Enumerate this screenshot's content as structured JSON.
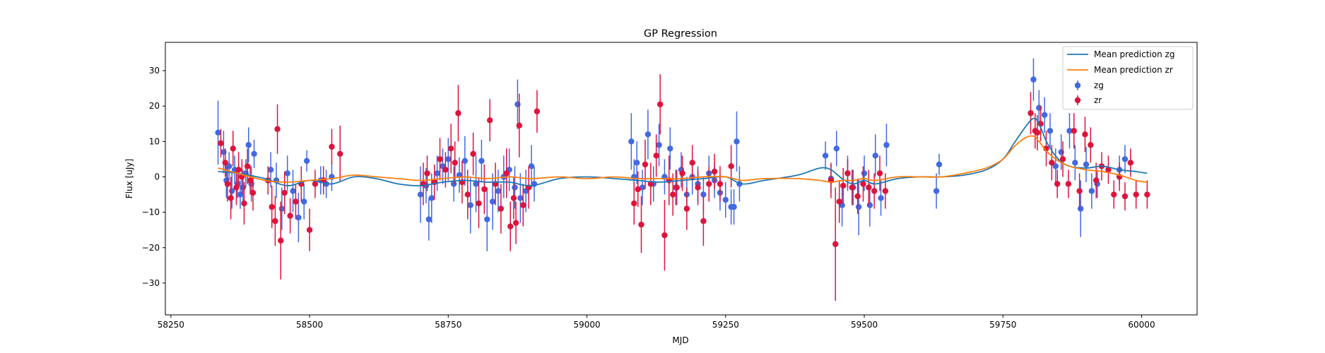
{
  "chart_data": {
    "type": "scatter",
    "title": "GP Regression",
    "xlabel": "MJD",
    "ylabel": "Flux [uJy]",
    "xlim": [
      58240,
      60100
    ],
    "ylim": [
      -39,
      38
    ],
    "x_ticks": [
      58250,
      58500,
      58750,
      59000,
      59250,
      59500,
      59750,
      60000
    ],
    "y_ticks": [
      -30,
      -20,
      -10,
      0,
      10,
      20,
      30
    ],
    "grid": false,
    "legend_position": "top-right",
    "legend": [
      "Mean prediction zg",
      "Mean prediction zr",
      "zg",
      "zr"
    ],
    "series": [
      {
        "name": "Mean prediction zg",
        "kind": "line",
        "color": "#1f77b4",
        "x": [
          58335,
          58370,
          58420,
          58460,
          58500,
          58540,
          58580,
          58620,
          58660,
          58700,
          58740,
          58780,
          58820,
          58860,
          58900,
          58950,
          59000,
          59050,
          59090,
          59130,
          59170,
          59210,
          59250,
          59280,
          59320,
          59380,
          59420,
          59440,
          59460,
          59480,
          59500,
          59520,
          59560,
          59600,
          59640,
          59680,
          59720,
          59750,
          59770,
          59790,
          59805,
          59815,
          59830,
          59850,
          59870,
          59900,
          59930,
          59960,
          59990,
          60010
        ],
        "y": [
          1.5,
          1.0,
          -0.5,
          -2.5,
          -1.0,
          -2.0,
          0.0,
          -0.5,
          -2.0,
          -2.5,
          -1.5,
          -1.0,
          -1.5,
          -1.5,
          -2.5,
          -0.5,
          0.0,
          -0.5,
          -1.0,
          -1.5,
          -1.0,
          -0.5,
          0.0,
          -2.0,
          -1.0,
          0.5,
          2.5,
          2.0,
          -0.5,
          -2.0,
          -1.0,
          -2.0,
          -0.5,
          0.0,
          0.0,
          0.5,
          2.0,
          5.0,
          9.5,
          14.0,
          16.5,
          15.0,
          9.5,
          5.0,
          3.0,
          2.5,
          3.0,
          2.0,
          1.5,
          1.0
        ]
      },
      {
        "name": "Mean prediction zr",
        "kind": "line",
        "color": "#ff7f0e",
        "x": [
          58335,
          58370,
          58420,
          58460,
          58500,
          58540,
          58580,
          58620,
          58660,
          58700,
          58740,
          58780,
          58820,
          58860,
          58900,
          58950,
          59000,
          59050,
          59090,
          59130,
          59170,
          59210,
          59250,
          59280,
          59320,
          59380,
          59420,
          59440,
          59460,
          59480,
          59500,
          59520,
          59560,
          59600,
          59640,
          59680,
          59720,
          59750,
          59770,
          59790,
          59805,
          59815,
          59830,
          59850,
          59870,
          59900,
          59930,
          59960,
          59990,
          60010
        ],
        "y": [
          2.5,
          1.0,
          -1.0,
          -1.5,
          -1.0,
          -0.5,
          0.5,
          0.0,
          -0.5,
          -1.0,
          -0.5,
          0.0,
          -0.5,
          0.0,
          -0.5,
          0.0,
          -0.5,
          0.0,
          -0.5,
          -0.5,
          -0.5,
          0.0,
          0.0,
          -1.0,
          -0.5,
          -0.5,
          -1.0,
          -1.5,
          -1.0,
          -1.0,
          -0.5,
          -1.0,
          0.0,
          0.0,
          0.0,
          1.0,
          2.5,
          5.0,
          8.5,
          11.0,
          11.5,
          10.0,
          7.0,
          4.5,
          3.0,
          2.0,
          1.5,
          0.5,
          -1.0,
          -1.5
        ]
      },
      {
        "name": "zg",
        "kind": "errorbar",
        "color": "#4169e1",
        "x": [
          58335,
          58345,
          58350,
          58355,
          58360,
          58365,
          58370,
          58375,
          58380,
          58385,
          58390,
          58395,
          58400,
          58430,
          58440,
          58450,
          58460,
          58470,
          58480,
          58490,
          58495,
          58520,
          58530,
          58540,
          58700,
          58710,
          58715,
          58720,
          58730,
          58740,
          58750,
          58760,
          58770,
          58780,
          58790,
          58800,
          58810,
          58820,
          58830,
          58840,
          58850,
          58860,
          58870,
          58875,
          58880,
          58890,
          58900,
          58905,
          59080,
          59085,
          59090,
          59100,
          59110,
          59120,
          59130,
          59140,
          59150,
          59160,
          59170,
          59180,
          59190,
          59200,
          59210,
          59220,
          59230,
          59240,
          59250,
          59260,
          59265,
          59270,
          59275,
          59430,
          59440,
          59450,
          59460,
          59470,
          59480,
          59490,
          59500,
          59510,
          59520,
          59530,
          59540,
          59630,
          59635,
          59805,
          59815,
          59825,
          59835,
          59845,
          59855,
          59870,
          59880,
          59890,
          59900,
          59910,
          59920,
          59960,
          59970
        ],
        "y": [
          12.5,
          7.0,
          -1.0,
          3.0,
          -4.0,
          2.0,
          -2.0,
          -5.0,
          -3.0,
          1.0,
          9.0,
          -2.0,
          6.5,
          2.0,
          -1.0,
          -9.0,
          1.0,
          -4.0,
          -11.5,
          -7.0,
          4.5,
          -1.0,
          -2.0,
          0.0,
          -5.0,
          -2.5,
          -12.0,
          -6.0,
          1.0,
          3.0,
          5.0,
          -2.0,
          0.5,
          4.5,
          -8.0,
          -2.0,
          4.5,
          -12.0,
          -7.0,
          -4.0,
          0.0,
          2.0,
          -3.0,
          20.5,
          -6.0,
          -4.0,
          3.0,
          -2.0,
          10.0,
          0.0,
          4.0,
          -3.0,
          12.0,
          -2.0,
          9.0,
          0.0,
          8.0,
          -3.0,
          2.0,
          -5.0,
          0.0,
          -2.0,
          -5.0,
          1.0,
          -1.0,
          -4.5,
          -6.5,
          -8.5,
          -8.5,
          10.0,
          -2.0,
          6.0,
          -0.5,
          8.0,
          -8.0,
          1.0,
          -3.0,
          -8.5,
          1.0,
          -8.0,
          6.0,
          -6.0,
          9.0,
          -4.0,
          3.5,
          27.5,
          19.5,
          17.5,
          13.0,
          3.0,
          7.0,
          13.0,
          4.0,
          -9.0,
          3.5,
          -4.0,
          -2.0,
          2.0,
          5.0
        ],
        "err": [
          9.0,
          6.0,
          5.0,
          4.0,
          5.0,
          4.0,
          4.0,
          4.0,
          5.0,
          4.0,
          5.0,
          5.0,
          4.0,
          5.0,
          5.0,
          6.0,
          5.0,
          6.0,
          7.0,
          5.0,
          3.0,
          4.0,
          4.0,
          4.0,
          8.0,
          5.0,
          6.0,
          7.0,
          5.0,
          5.0,
          6.0,
          5.0,
          5.0,
          7.0,
          8.0,
          8.0,
          6.0,
          9.0,
          8.0,
          6.0,
          6.0,
          6.0,
          6.0,
          7.0,
          7.0,
          6.0,
          6.0,
          5.0,
          8.0,
          5.0,
          6.0,
          5.0,
          7.0,
          5.0,
          6.0,
          5.0,
          6.0,
          5.0,
          5.0,
          5.0,
          5.0,
          5.0,
          5.0,
          5.0,
          5.0,
          5.0,
          5.0,
          5.0,
          5.0,
          8.5,
          5.0,
          4.0,
          4.0,
          5.0,
          6.0,
          5.0,
          5.0,
          8.0,
          5.0,
          6.0,
          6.0,
          5.0,
          6.0,
          5.0,
          3.0,
          6.0,
          5.0,
          5.0,
          5.0,
          5.0,
          5.0,
          5.0,
          5.0,
          8.0,
          5.0,
          5.0,
          4.0,
          4.0,
          4.0
        ]
      },
      {
        "name": "zr",
        "kind": "errorbar",
        "color": "#dc143c",
        "x": [
          58340,
          58348,
          58352,
          58358,
          58362,
          58368,
          58372,
          58378,
          58382,
          58388,
          58393,
          58398,
          58425,
          58432,
          58438,
          58442,
          58448,
          58455,
          58465,
          58475,
          58485,
          58500,
          58510,
          58525,
          58540,
          58555,
          58705,
          58712,
          58725,
          58735,
          58745,
          58755,
          58762,
          58768,
          58775,
          58785,
          58795,
          58805,
          58815,
          58825,
          58835,
          58845,
          58855,
          58862,
          58868,
          58872,
          58878,
          58885,
          58895,
          58910,
          59085,
          59092,
          59098,
          59105,
          59115,
          59125,
          59132,
          59140,
          59148,
          59155,
          59162,
          59172,
          59180,
          59190,
          59200,
          59210,
          59220,
          59230,
          59240,
          59260,
          59440,
          59448,
          59455,
          59462,
          59470,
          59478,
          59488,
          59498,
          59508,
          59518,
          59528,
          59538,
          59800,
          59808,
          59812,
          59818,
          59828,
          59838,
          59848,
          59858,
          59868,
          59878,
          59888,
          59898,
          59908,
          59918,
          59928,
          59940,
          59950,
          59960,
          59970,
          59980,
          59990,
          60010
        ],
        "y": [
          9.5,
          4.0,
          -2.0,
          -6.0,
          8.0,
          -3.0,
          2.0,
          0.0,
          -7.5,
          3.0,
          -1.0,
          -4.5,
          -1.0,
          -8.5,
          -12.5,
          13.5,
          -18.0,
          -4.5,
          -11.0,
          -7.0,
          -2.0,
          -15.0,
          -2.0,
          -1.0,
          8.5,
          6.5,
          -2.0,
          1.0,
          -1.5,
          5.0,
          2.0,
          8.0,
          4.0,
          18.0,
          -1.5,
          -5.0,
          6.5,
          -7.5,
          -3.5,
          16.0,
          -2.0,
          -9.0,
          1.0,
          -14.0,
          -6.0,
          -13.0,
          14.5,
          -8.0,
          -3.0,
          18.5,
          -7.5,
          -3.5,
          -13.5,
          3.5,
          -2.0,
          6.0,
          20.5,
          -16.5,
          -1.0,
          -5.0,
          -3.0,
          1.0,
          -9.0,
          4.0,
          -3.0,
          -12.5,
          -2.0,
          1.5,
          -2.0,
          3.0,
          -1.0,
          -19.0,
          -7.0,
          -2.5,
          1.0,
          -3.0,
          -5.5,
          -2.0,
          -3.0,
          -4.0,
          1.0,
          -4.0,
          18.0,
          13.0,
          12.5,
          15.0,
          8.0,
          4.0,
          -2.0,
          5.0,
          -2.0,
          13.0,
          -4.0,
          12.0,
          9.0,
          -1.0,
          3.0,
          2.0,
          -5.0,
          0.0,
          -5.5,
          4.0,
          -5.0,
          -5.0
        ],
        "err": [
          4.0,
          4.0,
          5.0,
          6.0,
          5.0,
          5.0,
          5.0,
          5.0,
          6.0,
          5.0,
          4.0,
          5.0,
          4.0,
          6.0,
          7.0,
          7.0,
          11.0,
          6.0,
          5.0,
          5.0,
          5.0,
          6.0,
          4.0,
          4.0,
          5.0,
          8.0,
          6.0,
          5.0,
          5.0,
          6.0,
          5.0,
          7.0,
          6.0,
          8.0,
          6.0,
          7.0,
          6.0,
          7.0,
          7.0,
          6.0,
          6.0,
          7.0,
          7.0,
          7.0,
          6.0,
          6.0,
          9.0,
          6.0,
          6.0,
          6.0,
          6.0,
          5.0,
          8.0,
          7.0,
          6.0,
          6.0,
          8.5,
          10.0,
          7.0,
          6.0,
          5.0,
          5.0,
          6.0,
          5.0,
          5.0,
          7.0,
          5.0,
          5.0,
          5.0,
          6.0,
          5.0,
          16.0,
          6.0,
          5.0,
          4.0,
          5.0,
          5.0,
          5.0,
          5.0,
          5.0,
          5.0,
          5.0,
          6.0,
          5.0,
          5.0,
          5.0,
          5.0,
          5.0,
          4.0,
          5.0,
          4.0,
          5.0,
          5.0,
          5.0,
          5.0,
          5.0,
          4.0,
          4.0,
          4.0,
          4.0,
          4.0,
          4.0,
          4.0,
          4.0
        ]
      }
    ]
  }
}
